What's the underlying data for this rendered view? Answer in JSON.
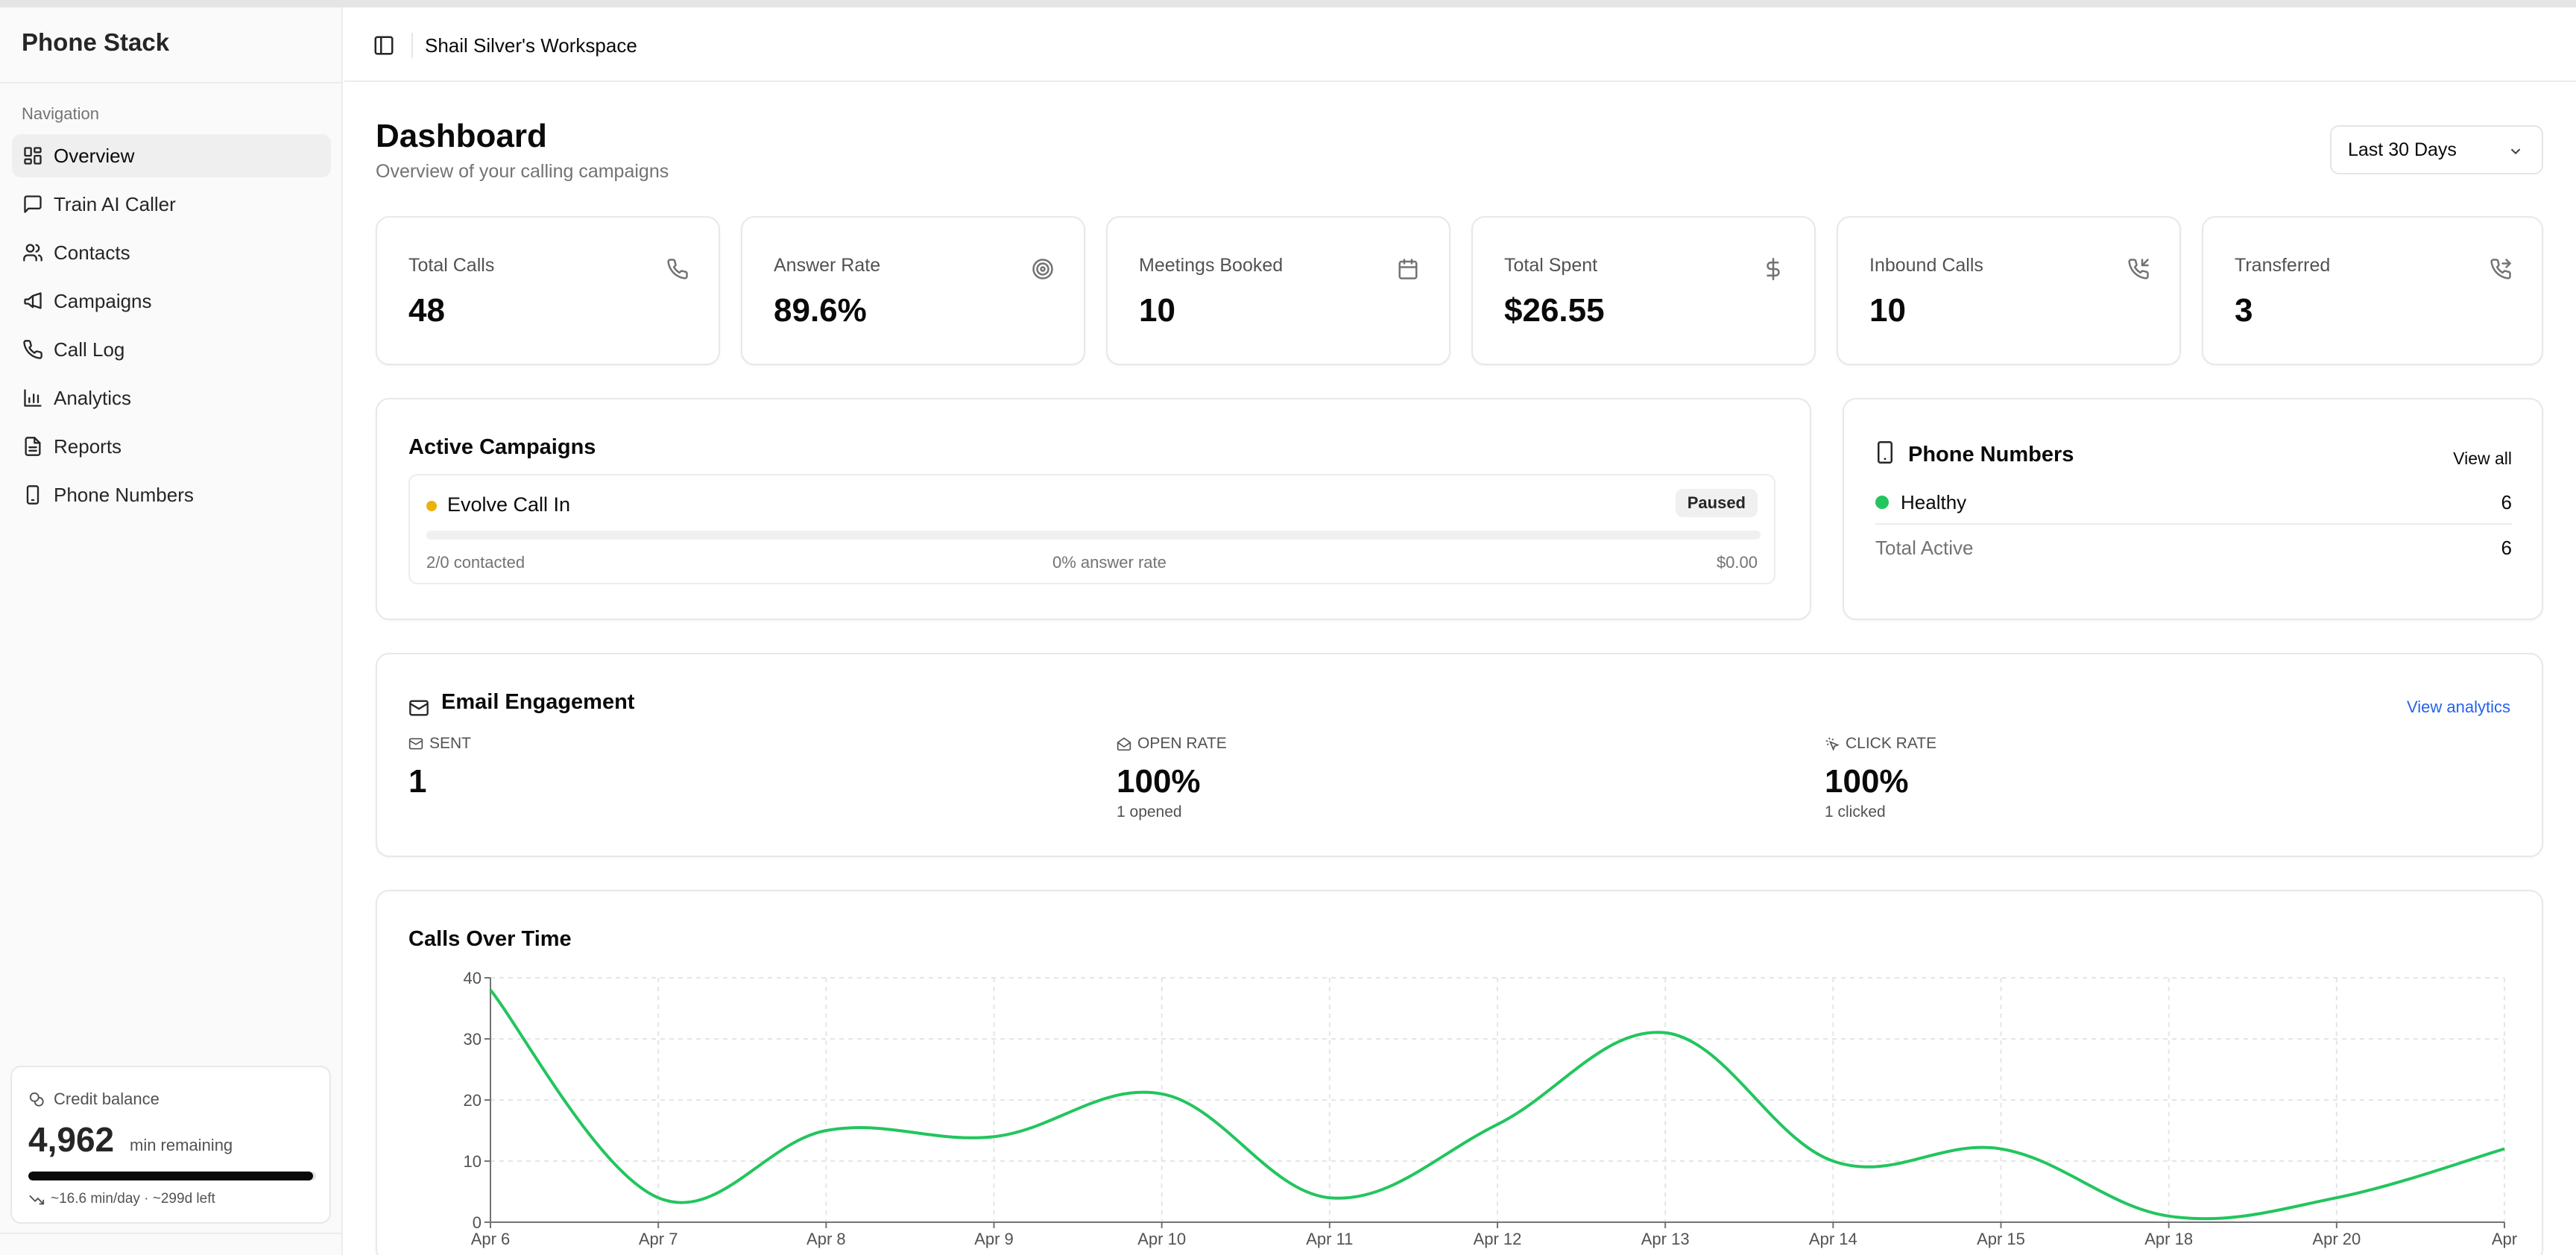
{
  "app": {
    "name": "Phone Stack"
  },
  "sidebar": {
    "heading": "Navigation",
    "items": [
      {
        "label": "Overview",
        "icon": "layout-grid-icon",
        "active": true
      },
      {
        "label": "Train AI Caller",
        "icon": "message-square-icon",
        "active": false
      },
      {
        "label": "Contacts",
        "icon": "users-icon",
        "active": false
      },
      {
        "label": "Campaigns",
        "icon": "megaphone-icon",
        "active": false
      },
      {
        "label": "Call Log",
        "icon": "phone-icon",
        "active": false
      },
      {
        "label": "Analytics",
        "icon": "bar-chart-icon",
        "active": false
      },
      {
        "label": "Reports",
        "icon": "file-text-icon",
        "active": false
      },
      {
        "label": "Phone Numbers",
        "icon": "smartphone-icon",
        "active": false
      }
    ],
    "credit": {
      "label": "Credit balance",
      "value": "4,962",
      "unit": "min remaining",
      "remaining_fraction": 0.99,
      "footer": "~16.6 min/day · ~299d left"
    }
  },
  "header": {
    "workspace": "Shail Silver's Workspace"
  },
  "page": {
    "title": "Dashboard",
    "subtitle": "Overview of your calling campaigns",
    "range": "Last 30 Days"
  },
  "stats": [
    {
      "label": "Total Calls",
      "value": "48",
      "icon": "phone-icon"
    },
    {
      "label": "Answer Rate",
      "value": "89.6%",
      "icon": "target-icon"
    },
    {
      "label": "Meetings Booked",
      "value": "10",
      "icon": "calendar-icon"
    },
    {
      "label": "Total Spent",
      "value": "$26.55",
      "icon": "dollar-icon"
    },
    {
      "label": "Inbound Calls",
      "value": "10",
      "icon": "phone-incoming-icon"
    },
    {
      "label": "Transferred",
      "value": "3",
      "icon": "phone-forwarded-icon"
    }
  ],
  "campaigns": {
    "title": "Active Campaigns",
    "items": [
      {
        "name": "Evolve Call In",
        "status": "Paused",
        "contacted": "2/0 contacted",
        "answer_rate": "0% answer rate",
        "spent": "$0.00",
        "progress": 0,
        "status_color": "#eab308"
      }
    ]
  },
  "phone_numbers": {
    "title": "Phone Numbers",
    "view_all": "View all",
    "healthy_label": "Healthy",
    "healthy_count": "6",
    "total_label": "Total Active",
    "total_count": "6",
    "healthy_color": "#22c55e"
  },
  "email": {
    "title": "Email Engagement",
    "view_analytics": "View analytics",
    "sent_label": "SENT",
    "sent_value": "1",
    "open_label": "OPEN RATE",
    "open_value": "100%",
    "open_sub": "1 opened",
    "click_label": "CLICK RATE",
    "click_value": "100%",
    "click_sub": "1 clicked"
  },
  "chart_data": {
    "type": "line",
    "title": "Calls Over Time",
    "categories": [
      "Apr 6",
      "Apr 7",
      "Apr 8",
      "Apr 9",
      "Apr 10",
      "Apr 11",
      "Apr 12",
      "Apr 13",
      "Apr 14",
      "Apr 15",
      "Apr 18",
      "Apr 20",
      "Apr"
    ],
    "series": [
      {
        "values": [
          38,
          4,
          15,
          14,
          21,
          4,
          16,
          31,
          10,
          12,
          1,
          4,
          12
        ]
      }
    ],
    "ylim": [
      0,
      40
    ],
    "yticks": [
      0,
      10,
      20,
      30,
      40
    ],
    "grid": true,
    "color": "#22c55e"
  }
}
